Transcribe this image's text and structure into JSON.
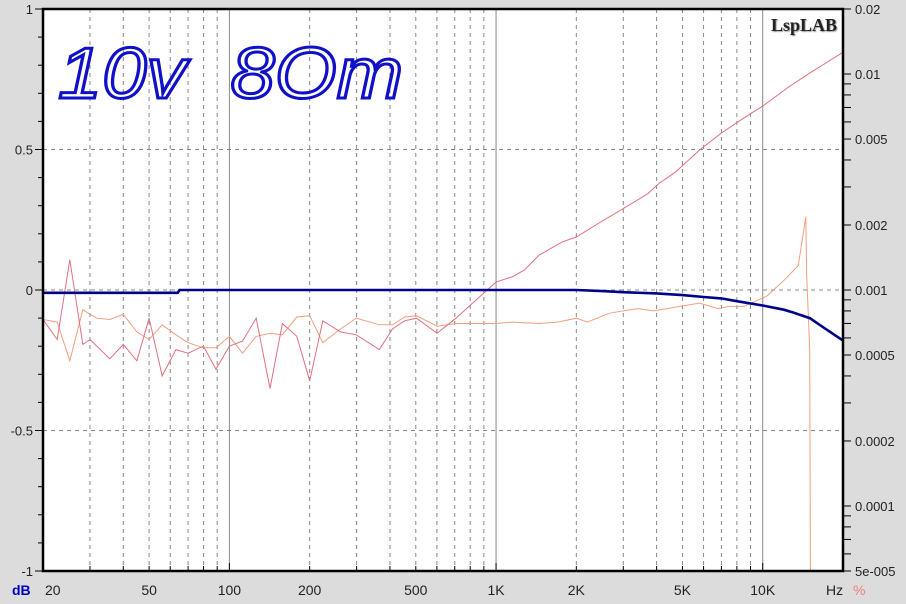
{
  "chart_data": {
    "type": "line",
    "brand": "LspLAB",
    "annotation": "10v  8Om",
    "x_unit": "Hz",
    "left_unit": "dB",
    "right_unit": "%",
    "xlim": [
      20,
      20000
    ],
    "x_scale": "log",
    "left_ylim": [
      -1,
      1
    ],
    "right_ylim": [
      5e-05,
      0.02
    ],
    "right_scale": "log",
    "x_ticks": [
      {
        "v": 20,
        "label": "20"
      },
      {
        "v": 50,
        "label": "50"
      },
      {
        "v": 100,
        "label": "100"
      },
      {
        "v": 200,
        "label": "200"
      },
      {
        "v": 500,
        "label": "500"
      },
      {
        "v": 1000,
        "label": "1K"
      },
      {
        "v": 2000,
        "label": "2K"
      },
      {
        "v": 5000,
        "label": "5K"
      },
      {
        "v": 10000,
        "label": "10K"
      }
    ],
    "left_ticks": [
      {
        "v": 1,
        "label": "1"
      },
      {
        "v": 0.5,
        "label": "0.5"
      },
      {
        "v": 0,
        "label": "0"
      },
      {
        "v": -0.5,
        "label": "-0.5"
      },
      {
        "v": -1,
        "label": "-1"
      }
    ],
    "right_ticks": [
      {
        "v": 0.02,
        "label": "0.02"
      },
      {
        "v": 0.01,
        "label": "0.01"
      },
      {
        "v": 0.005,
        "label": "0.005"
      },
      {
        "v": 0.002,
        "label": "0.002"
      },
      {
        "v": 0.001,
        "label": "0.001"
      },
      {
        "v": 0.0005,
        "label": "0.0005"
      },
      {
        "v": 0.0002,
        "label": "0.0002"
      },
      {
        "v": 0.0001,
        "label": "0.0001"
      },
      {
        "v": 5e-05,
        "label": "5e-005"
      }
    ],
    "grid": true,
    "colors": {
      "response": "#00008b",
      "distortion_a": "#e07080",
      "distortion_b": "#f0a080",
      "left_unit": "#0000c0",
      "right_unit": "#f08080",
      "background": "#dcdcdc",
      "plot": "#ffffff"
    },
    "series": [
      {
        "axis": "left",
        "color_key": "response",
        "x": [
          20,
          30,
          64,
          65,
          100,
          500,
          1000,
          2000,
          2500,
          3000,
          4000,
          5000,
          6000,
          7000,
          8000,
          10000,
          12000,
          13000,
          15000,
          17000,
          20000
        ],
        "y": [
          -0.01,
          -0.01,
          -0.01,
          0,
          0,
          0,
          0,
          0,
          -0.004,
          -0.008,
          -0.012,
          -0.018,
          -0.025,
          -0.03,
          -0.04,
          -0.055,
          -0.07,
          -0.08,
          -0.1,
          -0.135,
          -0.18
        ]
      },
      {
        "axis": "right",
        "color_key": "distortion_a",
        "x": [
          20,
          22.6,
          25.2,
          28.2,
          30,
          35.6,
          40,
          45,
          50,
          56,
          63,
          70,
          80,
          89,
          100,
          112,
          126,
          142,
          158,
          179,
          200,
          224,
          261,
          299,
          365,
          409,
          454,
          503,
          601,
          707,
          860,
          1000,
          1150,
          1280,
          1450,
          1770,
          2000,
          2400,
          3200,
          3700,
          4100,
          4700,
          5800,
          7000,
          8700,
          10000,
          12500,
          15000,
          20000
        ],
        "y": [
          0.00073,
          0.00059,
          0.00138,
          0.00056,
          0.00059,
          0.00048,
          0.00056,
          0.00047,
          0.00074,
          0.0004,
          0.00053,
          0.00051,
          0.00055,
          0.00043,
          0.00055,
          0.00058,
          0.00074,
          0.00035,
          0.0007,
          0.00061,
          0.00038,
          0.00072,
          0.00064,
          0.00062,
          0.00053,
          0.00066,
          0.00072,
          0.00074,
          0.00063,
          0.00074,
          0.00092,
          0.00109,
          0.00115,
          0.00124,
          0.00145,
          0.00167,
          0.00176,
          0.00202,
          0.0025,
          0.00279,
          0.00313,
          0.00351,
          0.00445,
          0.00533,
          0.00638,
          0.0071,
          0.00871,
          0.0101,
          0.0126
        ]
      },
      {
        "axis": "right",
        "color_key": "distortion_b",
        "x": [
          20,
          22.6,
          25.2,
          28.2,
          31.8,
          35.6,
          40,
          45,
          50,
          56,
          63,
          70,
          80,
          89,
          100,
          112,
          126,
          142,
          158,
          179,
          200,
          224,
          261,
          299,
          365,
          409,
          454,
          503,
          601,
          707,
          860,
          1000,
          1150,
          1450,
          1700,
          2000,
          2200,
          2650,
          3000,
          3400,
          3900,
          4900,
          5800,
          6800,
          7500,
          8500,
          10400,
          12300,
          13600,
          14500,
          14600,
          15000,
          15100
        ],
        "y": [
          0.00073,
          0.00071,
          0.00047,
          0.00081,
          0.00074,
          0.00073,
          0.00077,
          0.00064,
          0.00059,
          0.00069,
          0.00062,
          0.00057,
          0.00054,
          0.00054,
          0.00061,
          0.00051,
          0.00061,
          0.00063,
          0.00062,
          0.00075,
          0.00076,
          0.00057,
          0.00066,
          0.00074,
          0.00069,
          0.00069,
          0.00075,
          0.00076,
          0.00068,
          0.0007,
          0.0007,
          0.0007,
          0.00071,
          0.0007,
          0.00071,
          0.00074,
          0.00071,
          0.00078,
          0.0008,
          0.00082,
          0.0008,
          0.00084,
          0.00087,
          0.00082,
          0.00084,
          0.00084,
          0.00094,
          0.00114,
          0.0013,
          0.00218,
          0.0012,
          0.00053,
          4e-05
        ]
      }
    ]
  }
}
